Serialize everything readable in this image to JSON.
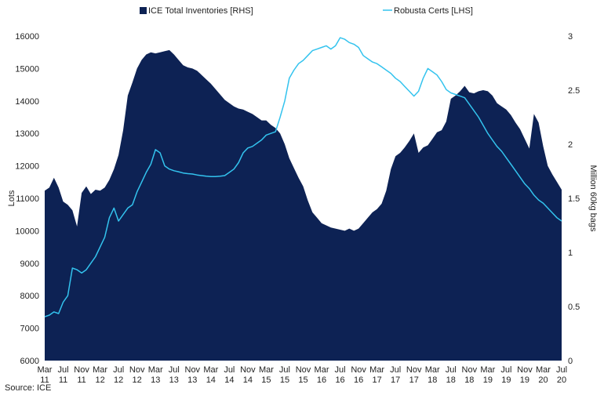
{
  "chart_data": {
    "type": "area",
    "legend": {
      "placement": "top",
      "entries": [
        "ICE Total Inventories [RHS]",
        "Robusta Certs [LHS]"
      ]
    },
    "ylabel_left": "Lots",
    "ylabel_right": "Million 60kg bags",
    "source": "Source: ICE",
    "ylim_left": [
      6000,
      16000
    ],
    "ylim_right": [
      0,
      3
    ],
    "yticks_left": [
      "6000",
      "7000",
      "8000",
      "9000",
      "10000",
      "11000",
      "12000",
      "13000",
      "14000",
      "15000",
      "16000"
    ],
    "yticks_right": [
      "0",
      "0.5",
      "1",
      "1.5",
      "2",
      "2.5",
      "3"
    ],
    "xlim": [
      0,
      112
    ],
    "x_ticks": [
      {
        "m": 0,
        "top": "Mar",
        "bottom": "11"
      },
      {
        "m": 4,
        "top": "Jul",
        "bottom": "11"
      },
      {
        "m": 8,
        "top": "Nov",
        "bottom": "11"
      },
      {
        "m": 12,
        "top": "Mar",
        "bottom": "12"
      },
      {
        "m": 16,
        "top": "Jul",
        "bottom": "12"
      },
      {
        "m": 20,
        "top": "Nov",
        "bottom": "12"
      },
      {
        "m": 24,
        "top": "Mar",
        "bottom": "13"
      },
      {
        "m": 28,
        "top": "Jul",
        "bottom": "13"
      },
      {
        "m": 32,
        "top": "Nov",
        "bottom": "13"
      },
      {
        "m": 36,
        "top": "Mar",
        "bottom": "14"
      },
      {
        "m": 40,
        "top": "Jul",
        "bottom": "14"
      },
      {
        "m": 44,
        "top": "Nov",
        "bottom": "14"
      },
      {
        "m": 48,
        "top": "Mar",
        "bottom": "15"
      },
      {
        "m": 52,
        "top": "Jul",
        "bottom": "15"
      },
      {
        "m": 56,
        "top": "Nov",
        "bottom": "15"
      },
      {
        "m": 60,
        "top": "Mar",
        "bottom": "16"
      },
      {
        "m": 64,
        "top": "Jul",
        "bottom": "16"
      },
      {
        "m": 68,
        "top": "Nov",
        "bottom": "16"
      },
      {
        "m": 72,
        "top": "Mar",
        "bottom": "17"
      },
      {
        "m": 76,
        "top": "Jul",
        "bottom": "17"
      },
      {
        "m": 80,
        "top": "Nov",
        "bottom": "17"
      },
      {
        "m": 84,
        "top": "Mar",
        "bottom": "18"
      },
      {
        "m": 88,
        "top": "Jul",
        "bottom": "18"
      },
      {
        "m": 92,
        "top": "Nov",
        "bottom": "18"
      },
      {
        "m": 96,
        "top": "Mar",
        "bottom": "19"
      },
      {
        "m": 100,
        "top": "Jul",
        "bottom": "19"
      },
      {
        "m": 104,
        "top": "Nov",
        "bottom": "19"
      },
      {
        "m": 108,
        "top": "Mar",
        "bottom": "20"
      },
      {
        "m": 112,
        "top": "Jul",
        "bottom": "20"
      }
    ],
    "series": [
      {
        "name": "ICE Total Inventories [RHS]",
        "kind": "area",
        "axis": "right",
        "color": "#0d2254",
        "points": [
          [
            0,
            1.57
          ],
          [
            1,
            1.6
          ],
          [
            2,
            1.69
          ],
          [
            3,
            1.6
          ],
          [
            4,
            1.47
          ],
          [
            5,
            1.44
          ],
          [
            6,
            1.39
          ],
          [
            7,
            1.24
          ],
          [
            8,
            1.55
          ],
          [
            9,
            1.61
          ],
          [
            10,
            1.54
          ],
          [
            11,
            1.58
          ],
          [
            12,
            1.57
          ],
          [
            13,
            1.6
          ],
          [
            14,
            1.67
          ],
          [
            15,
            1.77
          ],
          [
            16,
            1.9
          ],
          [
            17,
            2.13
          ],
          [
            18,
            2.45
          ],
          [
            19,
            2.57
          ],
          [
            20,
            2.7
          ],
          [
            21,
            2.78
          ],
          [
            22,
            2.83
          ],
          [
            23,
            2.85
          ],
          [
            24,
            2.84
          ],
          [
            25,
            2.85
          ],
          [
            26,
            2.86
          ],
          [
            27,
            2.87
          ],
          [
            28,
            2.83
          ],
          [
            29,
            2.78
          ],
          [
            30,
            2.73
          ],
          [
            31,
            2.71
          ],
          [
            32,
            2.7
          ],
          [
            33,
            2.68
          ],
          [
            34,
            2.64
          ],
          [
            35,
            2.6
          ],
          [
            36,
            2.56
          ],
          [
            37,
            2.51
          ],
          [
            38,
            2.46
          ],
          [
            39,
            2.41
          ],
          [
            40,
            2.38
          ],
          [
            41,
            2.35
          ],
          [
            42,
            2.33
          ],
          [
            43,
            2.32
          ],
          [
            44,
            2.3
          ],
          [
            45,
            2.28
          ],
          [
            46,
            2.25
          ],
          [
            47,
            2.22
          ],
          [
            48,
            2.22
          ],
          [
            49,
            2.18
          ],
          [
            50,
            2.15
          ],
          [
            51,
            2.1
          ],
          [
            52,
            2.0
          ],
          [
            53,
            1.87
          ],
          [
            54,
            1.78
          ],
          [
            55,
            1.69
          ],
          [
            56,
            1.61
          ],
          [
            57,
            1.48
          ],
          [
            58,
            1.37
          ],
          [
            59,
            1.32
          ],
          [
            60,
            1.27
          ],
          [
            61,
            1.25
          ],
          [
            62,
            1.23
          ],
          [
            63,
            1.22
          ],
          [
            64,
            1.21
          ],
          [
            65,
            1.2
          ],
          [
            66,
            1.22
          ],
          [
            67,
            1.2
          ],
          [
            68,
            1.22
          ],
          [
            69,
            1.27
          ],
          [
            70,
            1.32
          ],
          [
            71,
            1.37
          ],
          [
            72,
            1.4
          ],
          [
            73,
            1.45
          ],
          [
            74,
            1.57
          ],
          [
            75,
            1.77
          ],
          [
            76,
            1.89
          ],
          [
            77,
            1.92
          ],
          [
            78,
            1.97
          ],
          [
            79,
            2.03
          ],
          [
            80,
            2.1
          ],
          [
            81,
            1.92
          ],
          [
            82,
            1.97
          ],
          [
            83,
            1.99
          ],
          [
            84,
            2.05
          ],
          [
            85,
            2.11
          ],
          [
            86,
            2.13
          ],
          [
            87,
            2.21
          ],
          [
            88,
            2.42
          ],
          [
            89,
            2.45
          ],
          [
            90,
            2.49
          ],
          [
            91,
            2.54
          ],
          [
            92,
            2.48
          ],
          [
            93,
            2.47
          ],
          [
            94,
            2.49
          ],
          [
            95,
            2.5
          ],
          [
            96,
            2.49
          ],
          [
            97,
            2.45
          ],
          [
            98,
            2.38
          ],
          [
            99,
            2.35
          ],
          [
            100,
            2.32
          ],
          [
            101,
            2.27
          ],
          [
            102,
            2.2
          ],
          [
            103,
            2.14
          ],
          [
            104,
            2.05
          ],
          [
            105,
            1.96
          ],
          [
            106,
            2.28
          ],
          [
            107,
            2.2
          ],
          [
            108,
            1.98
          ],
          [
            109,
            1.8
          ],
          [
            110,
            1.72
          ],
          [
            111,
            1.65
          ],
          [
            112,
            1.58
          ]
        ]
      },
      {
        "name": "Robusta Certs [LHS]",
        "kind": "line",
        "axis": "left",
        "color": "#33c3ee",
        "points": [
          [
            0,
            7350
          ],
          [
            1,
            7400
          ],
          [
            2,
            7500
          ],
          [
            3,
            7450
          ],
          [
            4,
            7800
          ],
          [
            5,
            8000
          ],
          [
            6,
            8850
          ],
          [
            7,
            8800
          ],
          [
            8,
            8700
          ],
          [
            9,
            8800
          ],
          [
            10,
            9000
          ],
          [
            11,
            9200
          ],
          [
            12,
            9500
          ],
          [
            13,
            9800
          ],
          [
            14,
            10400
          ],
          [
            15,
            10700
          ],
          [
            16,
            10300
          ],
          [
            17,
            10500
          ],
          [
            18,
            10700
          ],
          [
            19,
            10800
          ],
          [
            20,
            11200
          ],
          [
            21,
            11500
          ],
          [
            22,
            11800
          ],
          [
            23,
            12050
          ],
          [
            24,
            12500
          ],
          [
            25,
            12400
          ],
          [
            26,
            12000
          ],
          [
            27,
            11900
          ],
          [
            28,
            11850
          ],
          [
            29,
            11820
          ],
          [
            30,
            11780
          ],
          [
            31,
            11760
          ],
          [
            32,
            11750
          ],
          [
            33,
            11720
          ],
          [
            34,
            11700
          ],
          [
            35,
            11680
          ],
          [
            36,
            11670
          ],
          [
            37,
            11670
          ],
          [
            38,
            11680
          ],
          [
            39,
            11700
          ],
          [
            40,
            11800
          ],
          [
            41,
            11900
          ],
          [
            42,
            12100
          ],
          [
            43,
            12400
          ],
          [
            44,
            12550
          ],
          [
            45,
            12600
          ],
          [
            46,
            12700
          ],
          [
            47,
            12800
          ],
          [
            48,
            12950
          ],
          [
            49,
            13000
          ],
          [
            50,
            13050
          ],
          [
            51,
            13500
          ],
          [
            52,
            14000
          ],
          [
            53,
            14700
          ],
          [
            54,
            14950
          ],
          [
            55,
            15150
          ],
          [
            56,
            15250
          ],
          [
            57,
            15400
          ],
          [
            58,
            15550
          ],
          [
            59,
            15600
          ],
          [
            60,
            15650
          ],
          [
            61,
            15700
          ],
          [
            62,
            15600
          ],
          [
            63,
            15700
          ],
          [
            64,
            15950
          ],
          [
            65,
            15900
          ],
          [
            66,
            15800
          ],
          [
            67,
            15750
          ],
          [
            68,
            15650
          ],
          [
            69,
            15400
          ],
          [
            70,
            15300
          ],
          [
            71,
            15200
          ],
          [
            72,
            15150
          ],
          [
            73,
            15050
          ],
          [
            74,
            14950
          ],
          [
            75,
            14850
          ],
          [
            76,
            14700
          ],
          [
            77,
            14600
          ],
          [
            78,
            14450
          ],
          [
            79,
            14300
          ],
          [
            80,
            14150
          ],
          [
            81,
            14300
          ],
          [
            82,
            14700
          ],
          [
            83,
            15000
          ],
          [
            84,
            14900
          ],
          [
            85,
            14800
          ],
          [
            86,
            14600
          ],
          [
            87,
            14350
          ],
          [
            88,
            14250
          ],
          [
            89,
            14200
          ],
          [
            90,
            14150
          ],
          [
            91,
            14100
          ],
          [
            92,
            13900
          ],
          [
            93,
            13700
          ],
          [
            94,
            13500
          ],
          [
            95,
            13250
          ],
          [
            96,
            13000
          ],
          [
            97,
            12800
          ],
          [
            98,
            12600
          ],
          [
            99,
            12450
          ],
          [
            100,
            12250
          ],
          [
            101,
            12050
          ],
          [
            102,
            11850
          ],
          [
            103,
            11650
          ],
          [
            104,
            11450
          ],
          [
            105,
            11300
          ],
          [
            106,
            11100
          ],
          [
            107,
            10950
          ],
          [
            108,
            10850
          ],
          [
            109,
            10700
          ],
          [
            110,
            10550
          ],
          [
            111,
            10400
          ],
          [
            112,
            10300
          ]
        ]
      }
    ]
  }
}
